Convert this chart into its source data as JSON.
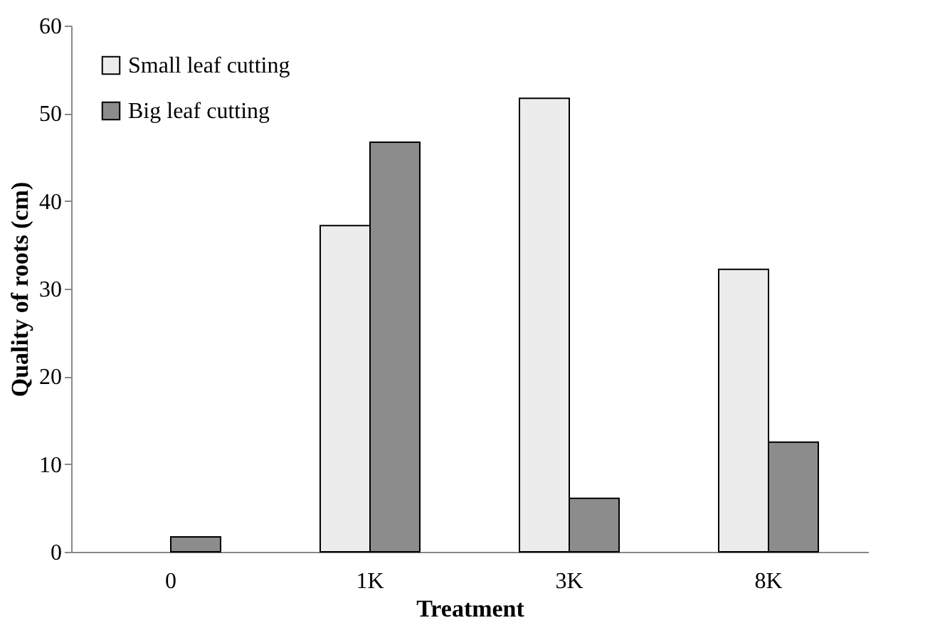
{
  "chart_data": {
    "type": "bar",
    "xlabel": "Treatment",
    "ylabel": "Quality of roots (cm)",
    "categories": [
      "0",
      "1K",
      "3K",
      "8K"
    ],
    "series": [
      {
        "name": "Small leaf cutting",
        "color": "#ececec",
        "values": [
          null,
          37.2,
          51.7,
          32.2
        ]
      },
      {
        "name": "Big leaf cutting",
        "color": "#8c8c8c",
        "values": [
          1.7,
          46.7,
          6.1,
          12.5
        ]
      }
    ],
    "ylim": [
      0,
      60
    ],
    "yticks": [
      0,
      10,
      20,
      30,
      40,
      50,
      60
    ],
    "grid": false,
    "legend": "top left"
  }
}
